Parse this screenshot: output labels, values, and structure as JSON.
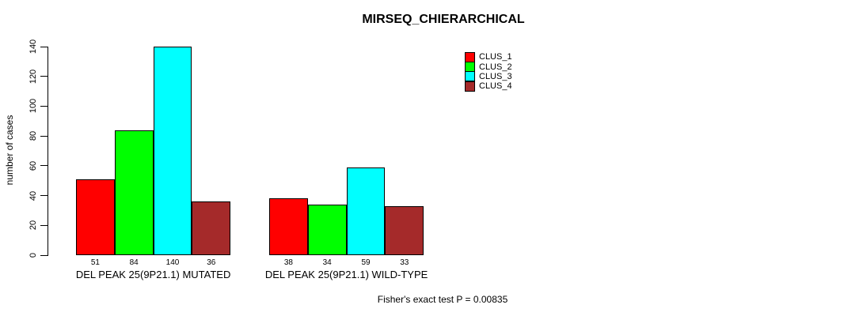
{
  "chart_data": {
    "type": "bar",
    "title": "MIRSEQ_CHIERARCHICAL",
    "xlabel": "",
    "ylabel": "number of cases",
    "ylim": [
      0,
      140
    ],
    "yticks": [
      0,
      20,
      40,
      60,
      80,
      100,
      120,
      140
    ],
    "grid": false,
    "legend_position": "topright",
    "bar_border_color": "#000000",
    "categories": [
      "DEL PEAK 25(9P21.1) MUTATED",
      "DEL PEAK 25(9P21.1) WILD-TYPE"
    ],
    "series": [
      {
        "name": "CLUS_1",
        "color": "#ff0000",
        "values": [
          51,
          38
        ]
      },
      {
        "name": "CLUS_2",
        "color": "#00ff00",
        "values": [
          84,
          34
        ]
      },
      {
        "name": "CLUS_3",
        "color": "#00ffff",
        "values": [
          140,
          59
        ]
      },
      {
        "name": "CLUS_4",
        "color": "#a52a2a",
        "values": [
          36,
          33
        ]
      }
    ],
    "annotation": "Fisher's exact test P = 0.00835"
  }
}
